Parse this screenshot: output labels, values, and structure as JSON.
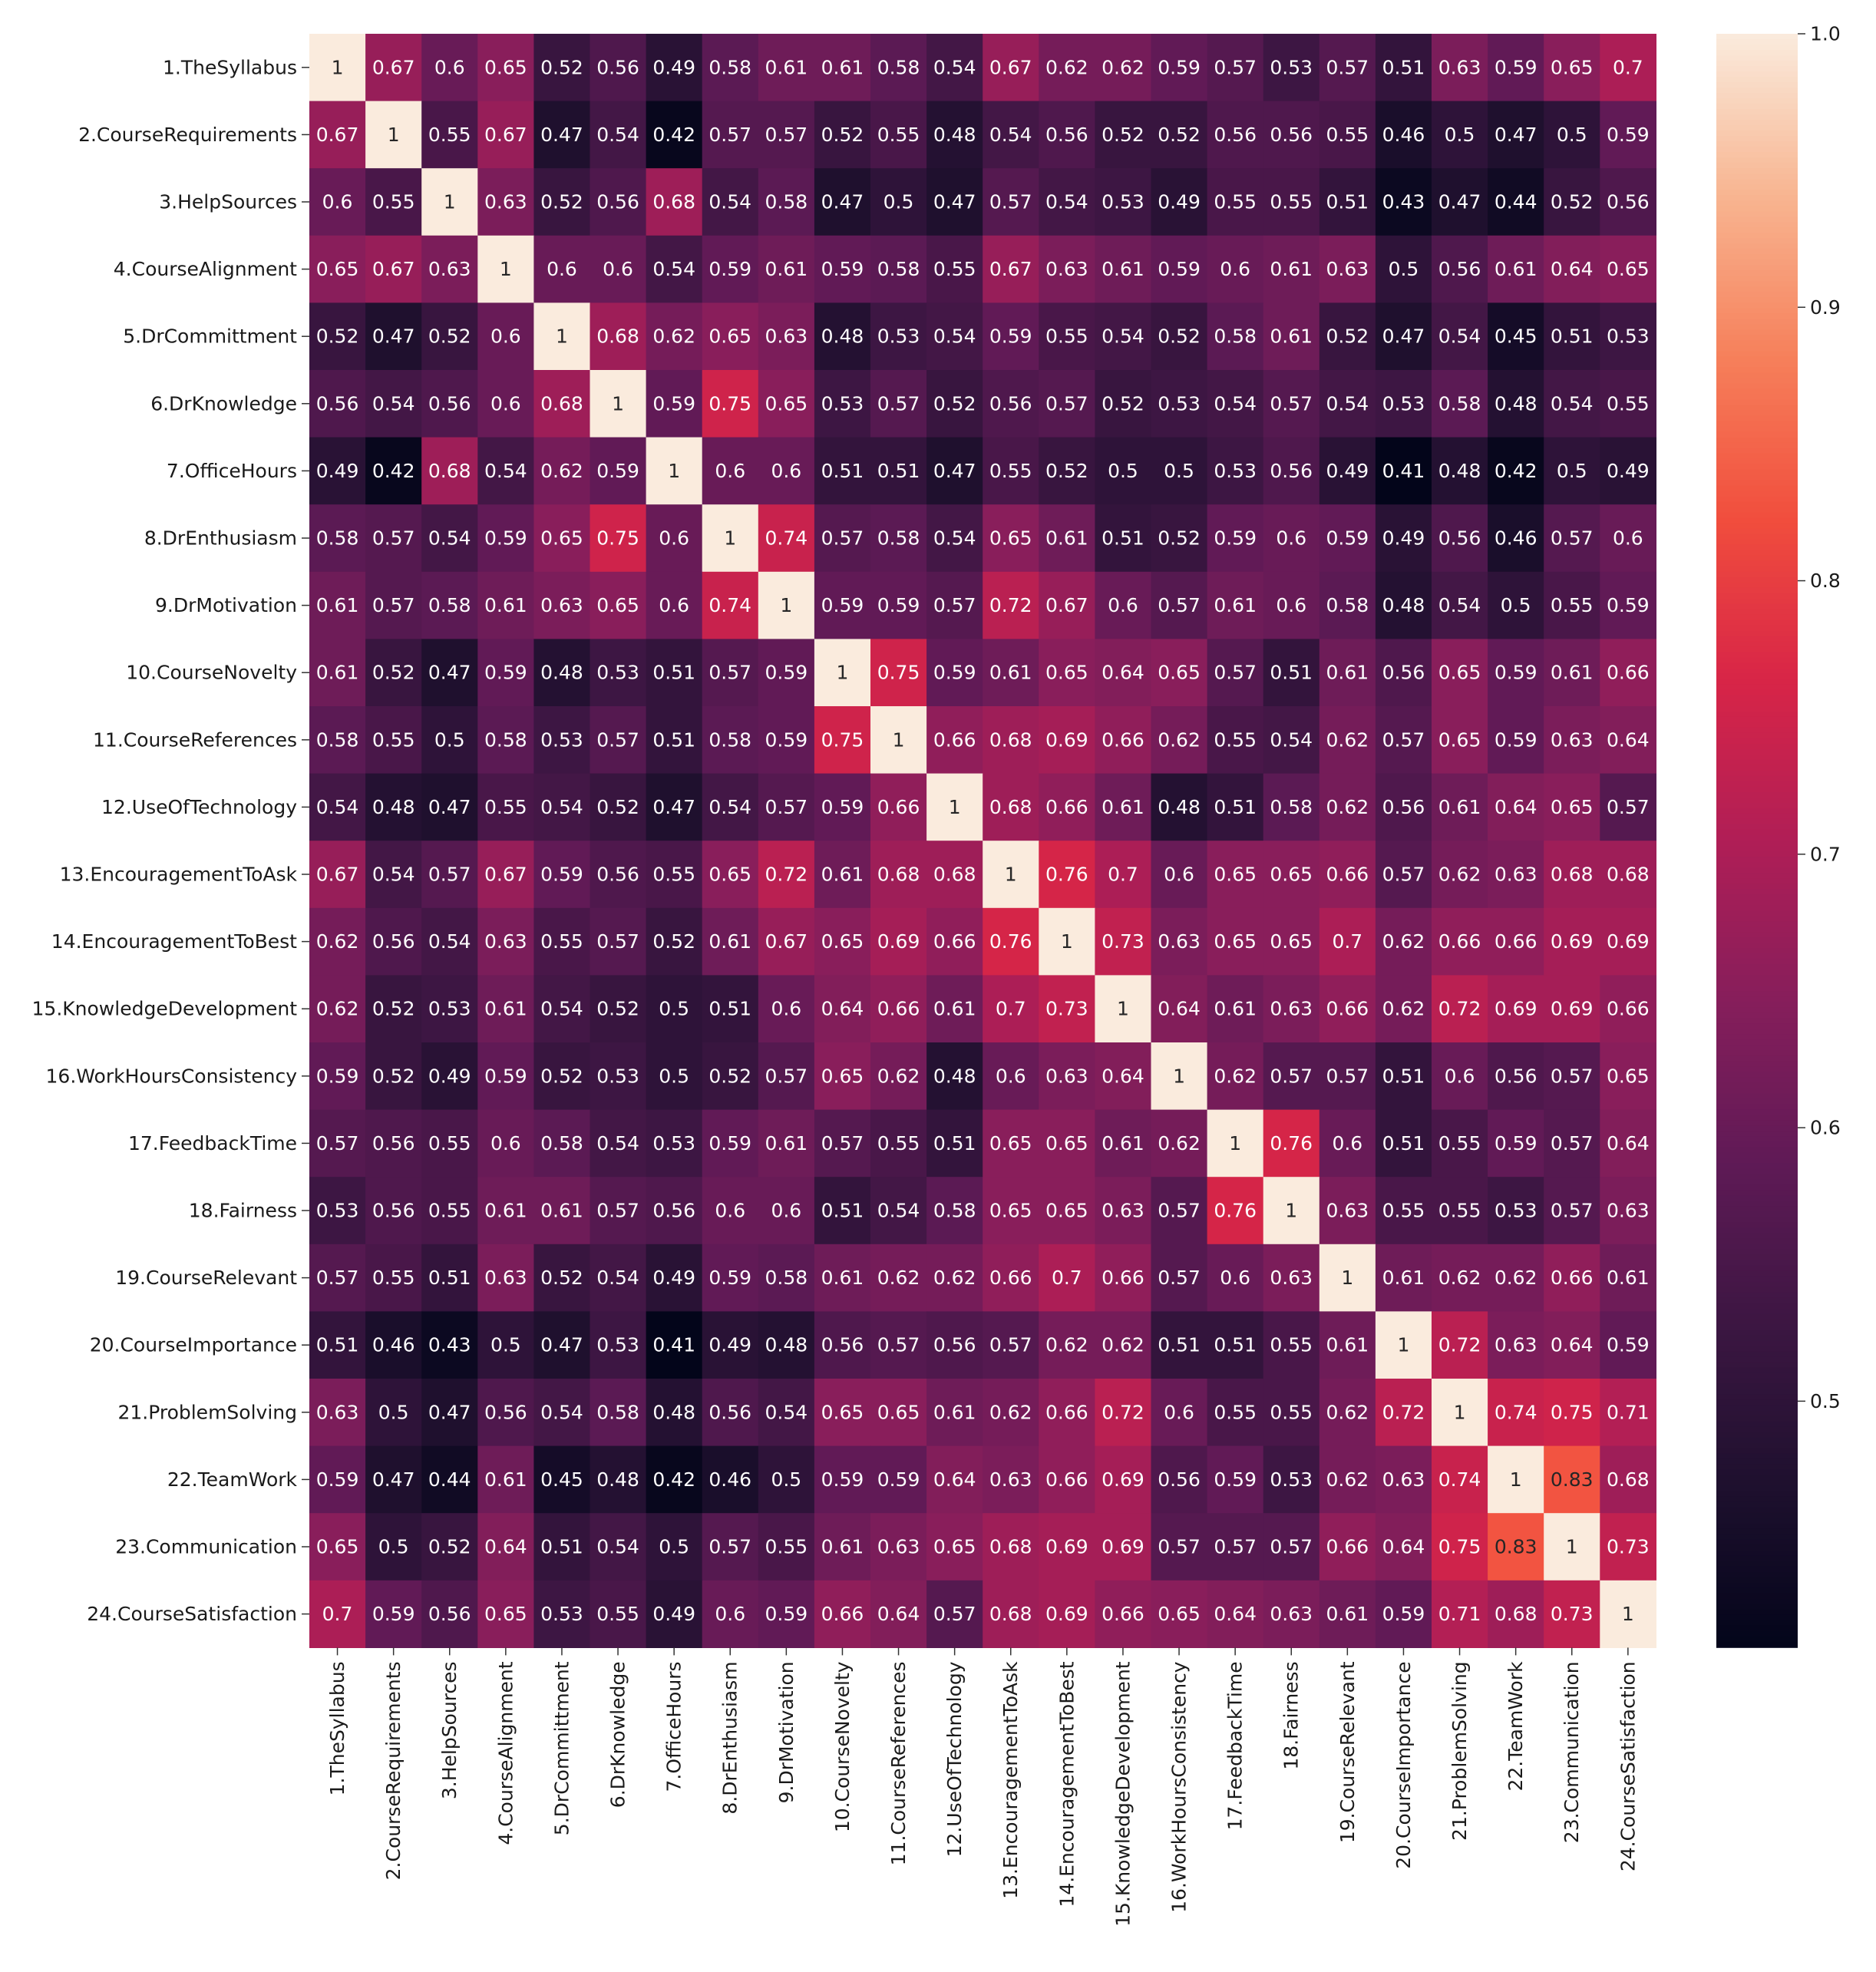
{
  "chart_data": {
    "type": "heatmap",
    "labels": [
      "1.TheSyllabus",
      "2.CourseRequirements",
      "3.HelpSources",
      "4.CourseAlignment",
      "5.DrCommittment",
      "6.DrKnowledge",
      "7.OfficeHours",
      "8.DrEnthusiasm",
      "9.DrMotivation",
      "10.CourseNovelty",
      "11.CourseReferences",
      "12.UseOfTechnology",
      "13.EncouragementToAsk",
      "14.EncouragementToBest",
      "15.KnowledgeDevelopment",
      "16.WorkHoursConsistency",
      "17.FeedbackTime",
      "18.Fairness",
      "19.CourseRelevant",
      "20.CourseImportance",
      "21.ProblemSolving",
      "22.TeamWork",
      "23.Communication",
      "24.CourseSatisfaction"
    ],
    "matrix": [
      [
        1,
        0.67,
        0.6,
        0.65,
        0.52,
        0.56,
        0.49,
        0.58,
        0.61,
        0.61,
        0.58,
        0.54,
        0.67,
        0.62,
        0.62,
        0.59,
        0.57,
        0.53,
        0.57,
        0.51,
        0.63,
        0.59,
        0.65,
        0.7
      ],
      [
        0.67,
        1,
        0.55,
        0.67,
        0.47,
        0.54,
        0.42,
        0.57,
        0.57,
        0.52,
        0.55,
        0.48,
        0.54,
        0.56,
        0.52,
        0.52,
        0.56,
        0.56,
        0.55,
        0.46,
        0.5,
        0.47,
        0.5,
        0.59
      ],
      [
        0.6,
        0.55,
        1,
        0.63,
        0.52,
        0.56,
        0.68,
        0.54,
        0.58,
        0.47,
        0.5,
        0.47,
        0.57,
        0.54,
        0.53,
        0.49,
        0.55,
        0.55,
        0.51,
        0.43,
        0.47,
        0.44,
        0.52,
        0.56
      ],
      [
        0.65,
        0.67,
        0.63,
        1,
        0.6,
        0.6,
        0.54,
        0.59,
        0.61,
        0.59,
        0.58,
        0.55,
        0.67,
        0.63,
        0.61,
        0.59,
        0.6,
        0.61,
        0.63,
        0.5,
        0.56,
        0.61,
        0.64,
        0.65
      ],
      [
        0.52,
        0.47,
        0.52,
        0.6,
        1,
        0.68,
        0.62,
        0.65,
        0.63,
        0.48,
        0.53,
        0.54,
        0.59,
        0.55,
        0.54,
        0.52,
        0.58,
        0.61,
        0.52,
        0.47,
        0.54,
        0.45,
        0.51,
        0.53
      ],
      [
        0.56,
        0.54,
        0.56,
        0.6,
        0.68,
        1,
        0.59,
        0.75,
        0.65,
        0.53,
        0.57,
        0.52,
        0.56,
        0.57,
        0.52,
        0.53,
        0.54,
        0.57,
        0.54,
        0.53,
        0.58,
        0.48,
        0.54,
        0.55
      ],
      [
        0.49,
        0.42,
        0.68,
        0.54,
        0.62,
        0.59,
        1,
        0.6,
        0.6,
        0.51,
        0.51,
        0.47,
        0.55,
        0.52,
        0.5,
        0.5,
        0.53,
        0.56,
        0.49,
        0.41,
        0.48,
        0.42,
        0.5,
        0.49
      ],
      [
        0.58,
        0.57,
        0.54,
        0.59,
        0.65,
        0.75,
        0.6,
        1,
        0.74,
        0.57,
        0.58,
        0.54,
        0.65,
        0.61,
        0.51,
        0.52,
        0.59,
        0.6,
        0.59,
        0.49,
        0.56,
        0.46,
        0.57,
        0.6
      ],
      [
        0.61,
        0.57,
        0.58,
        0.61,
        0.63,
        0.65,
        0.6,
        0.74,
        1,
        0.59,
        0.59,
        0.57,
        0.72,
        0.67,
        0.6,
        0.57,
        0.61,
        0.6,
        0.58,
        0.48,
        0.54,
        0.5,
        0.55,
        0.59
      ],
      [
        0.61,
        0.52,
        0.47,
        0.59,
        0.48,
        0.53,
        0.51,
        0.57,
        0.59,
        1,
        0.75,
        0.59,
        0.61,
        0.65,
        0.64,
        0.65,
        0.57,
        0.51,
        0.61,
        0.56,
        0.65,
        0.59,
        0.61,
        0.66
      ],
      [
        0.58,
        0.55,
        0.5,
        0.58,
        0.53,
        0.57,
        0.51,
        0.58,
        0.59,
        0.75,
        1,
        0.66,
        0.68,
        0.69,
        0.66,
        0.62,
        0.55,
        0.54,
        0.62,
        0.57,
        0.65,
        0.59,
        0.63,
        0.64
      ],
      [
        0.54,
        0.48,
        0.47,
        0.55,
        0.54,
        0.52,
        0.47,
        0.54,
        0.57,
        0.59,
        0.66,
        1,
        0.68,
        0.66,
        0.61,
        0.48,
        0.51,
        0.58,
        0.62,
        0.56,
        0.61,
        0.64,
        0.65,
        0.57
      ],
      [
        0.67,
        0.54,
        0.57,
        0.67,
        0.59,
        0.56,
        0.55,
        0.65,
        0.72,
        0.61,
        0.68,
        0.68,
        1,
        0.76,
        0.7,
        0.6,
        0.65,
        0.65,
        0.66,
        0.57,
        0.62,
        0.63,
        0.68,
        0.68
      ],
      [
        0.62,
        0.56,
        0.54,
        0.63,
        0.55,
        0.57,
        0.52,
        0.61,
        0.67,
        0.65,
        0.69,
        0.66,
        0.76,
        1,
        0.73,
        0.63,
        0.65,
        0.65,
        0.7,
        0.62,
        0.66,
        0.66,
        0.69,
        0.69
      ],
      [
        0.62,
        0.52,
        0.53,
        0.61,
        0.54,
        0.52,
        0.5,
        0.51,
        0.6,
        0.64,
        0.66,
        0.61,
        0.7,
        0.73,
        1,
        0.64,
        0.61,
        0.63,
        0.66,
        0.62,
        0.72,
        0.69,
        0.69,
        0.66
      ],
      [
        0.59,
        0.52,
        0.49,
        0.59,
        0.52,
        0.53,
        0.5,
        0.52,
        0.57,
        0.65,
        0.62,
        0.48,
        0.6,
        0.63,
        0.64,
        1,
        0.62,
        0.57,
        0.57,
        0.51,
        0.6,
        0.56,
        0.57,
        0.65
      ],
      [
        0.57,
        0.56,
        0.55,
        0.6,
        0.58,
        0.54,
        0.53,
        0.59,
        0.61,
        0.57,
        0.55,
        0.51,
        0.65,
        0.65,
        0.61,
        0.62,
        1,
        0.76,
        0.6,
        0.51,
        0.55,
        0.59,
        0.57,
        0.64
      ],
      [
        0.53,
        0.56,
        0.55,
        0.61,
        0.61,
        0.57,
        0.56,
        0.6,
        0.6,
        0.51,
        0.54,
        0.58,
        0.65,
        0.65,
        0.63,
        0.57,
        0.76,
        1,
        0.63,
        0.55,
        0.55,
        0.53,
        0.57,
        0.63
      ],
      [
        0.57,
        0.55,
        0.51,
        0.63,
        0.52,
        0.54,
        0.49,
        0.59,
        0.58,
        0.61,
        0.62,
        0.62,
        0.66,
        0.7,
        0.66,
        0.57,
        0.6,
        0.63,
        1,
        0.61,
        0.62,
        0.62,
        0.66,
        0.61
      ],
      [
        0.51,
        0.46,
        0.43,
        0.5,
        0.47,
        0.53,
        0.41,
        0.49,
        0.48,
        0.56,
        0.57,
        0.56,
        0.57,
        0.62,
        0.62,
        0.51,
        0.51,
        0.55,
        0.61,
        1,
        0.72,
        0.63,
        0.64,
        0.59
      ],
      [
        0.63,
        0.5,
        0.47,
        0.56,
        0.54,
        0.58,
        0.48,
        0.56,
        0.54,
        0.65,
        0.65,
        0.61,
        0.62,
        0.66,
        0.72,
        0.6,
        0.55,
        0.55,
        0.62,
        0.72,
        1,
        0.74,
        0.75,
        0.71
      ],
      [
        0.59,
        0.47,
        0.44,
        0.61,
        0.45,
        0.48,
        0.42,
        0.46,
        0.5,
        0.59,
        0.59,
        0.64,
        0.63,
        0.66,
        0.69,
        0.56,
        0.59,
        0.53,
        0.62,
        0.63,
        0.74,
        1,
        0.83,
        0.68
      ],
      [
        0.65,
        0.5,
        0.52,
        0.64,
        0.51,
        0.54,
        0.5,
        0.57,
        0.55,
        0.61,
        0.63,
        0.65,
        0.68,
        0.69,
        0.69,
        0.57,
        0.57,
        0.57,
        0.66,
        0.64,
        0.75,
        0.83,
        1,
        0.73
      ],
      [
        0.7,
        0.59,
        0.56,
        0.65,
        0.53,
        0.55,
        0.49,
        0.6,
        0.59,
        0.66,
        0.64,
        0.57,
        0.68,
        0.69,
        0.66,
        0.65,
        0.64,
        0.63,
        0.61,
        0.59,
        0.71,
        0.68,
        0.73,
        1
      ]
    ],
    "colorbar": {
      "min": 0.41,
      "max": 1.0,
      "ticks": [
        0.5,
        0.6,
        0.7,
        0.8,
        0.9,
        1.0
      ],
      "tick_labels": [
        "0.5",
        "0.6",
        "0.7",
        "0.8",
        "0.9",
        "1.0"
      ],
      "colormap": "rocket"
    },
    "title": "",
    "xlabel": "",
    "ylabel": ""
  }
}
